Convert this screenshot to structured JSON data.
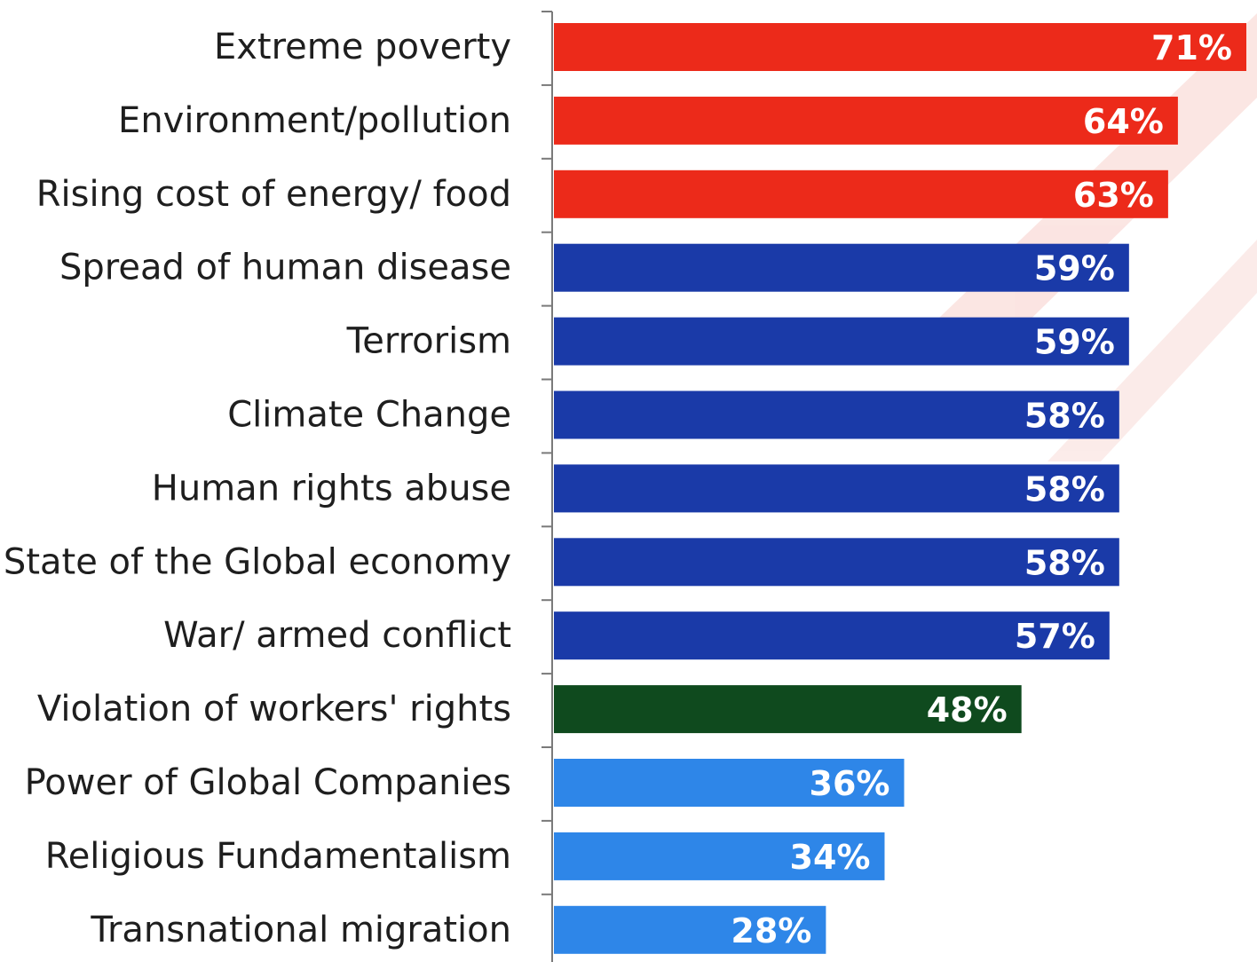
{
  "chart_data": {
    "type": "bar",
    "orientation": "horizontal",
    "categories": [
      "Extreme poverty",
      "Environment/pollution",
      "Rising cost of energy/ food",
      "Spread of human disease",
      "Terrorism",
      "Climate Change",
      "Human rights abuse",
      "State of the Global economy",
      "War/ armed conflict",
      "Violation of workers' rights",
      "Power of Global Companies",
      "Religious Fundamentalism",
      "Transnational migration"
    ],
    "values": [
      71,
      64,
      63,
      59,
      59,
      58,
      58,
      58,
      57,
      48,
      36,
      34,
      28
    ],
    "value_labels": [
      "71%",
      "64%",
      "63%",
      "59%",
      "59%",
      "58%",
      "58%",
      "58%",
      "57%",
      "48%",
      "36%",
      "34%",
      "28%"
    ],
    "bar_colors": [
      "#ec2a1a",
      "#ec2a1a",
      "#ec2a1a",
      "#1a3aa8",
      "#1a3aa8",
      "#1a3aa8",
      "#1a3aa8",
      "#1a3aa8",
      "#1a3aa8",
      "#0f4a1e",
      "#2e86e8",
      "#2e86e8",
      "#2e86e8"
    ],
    "xlim": [
      0,
      71
    ],
    "grid": false,
    "legend": "none"
  }
}
